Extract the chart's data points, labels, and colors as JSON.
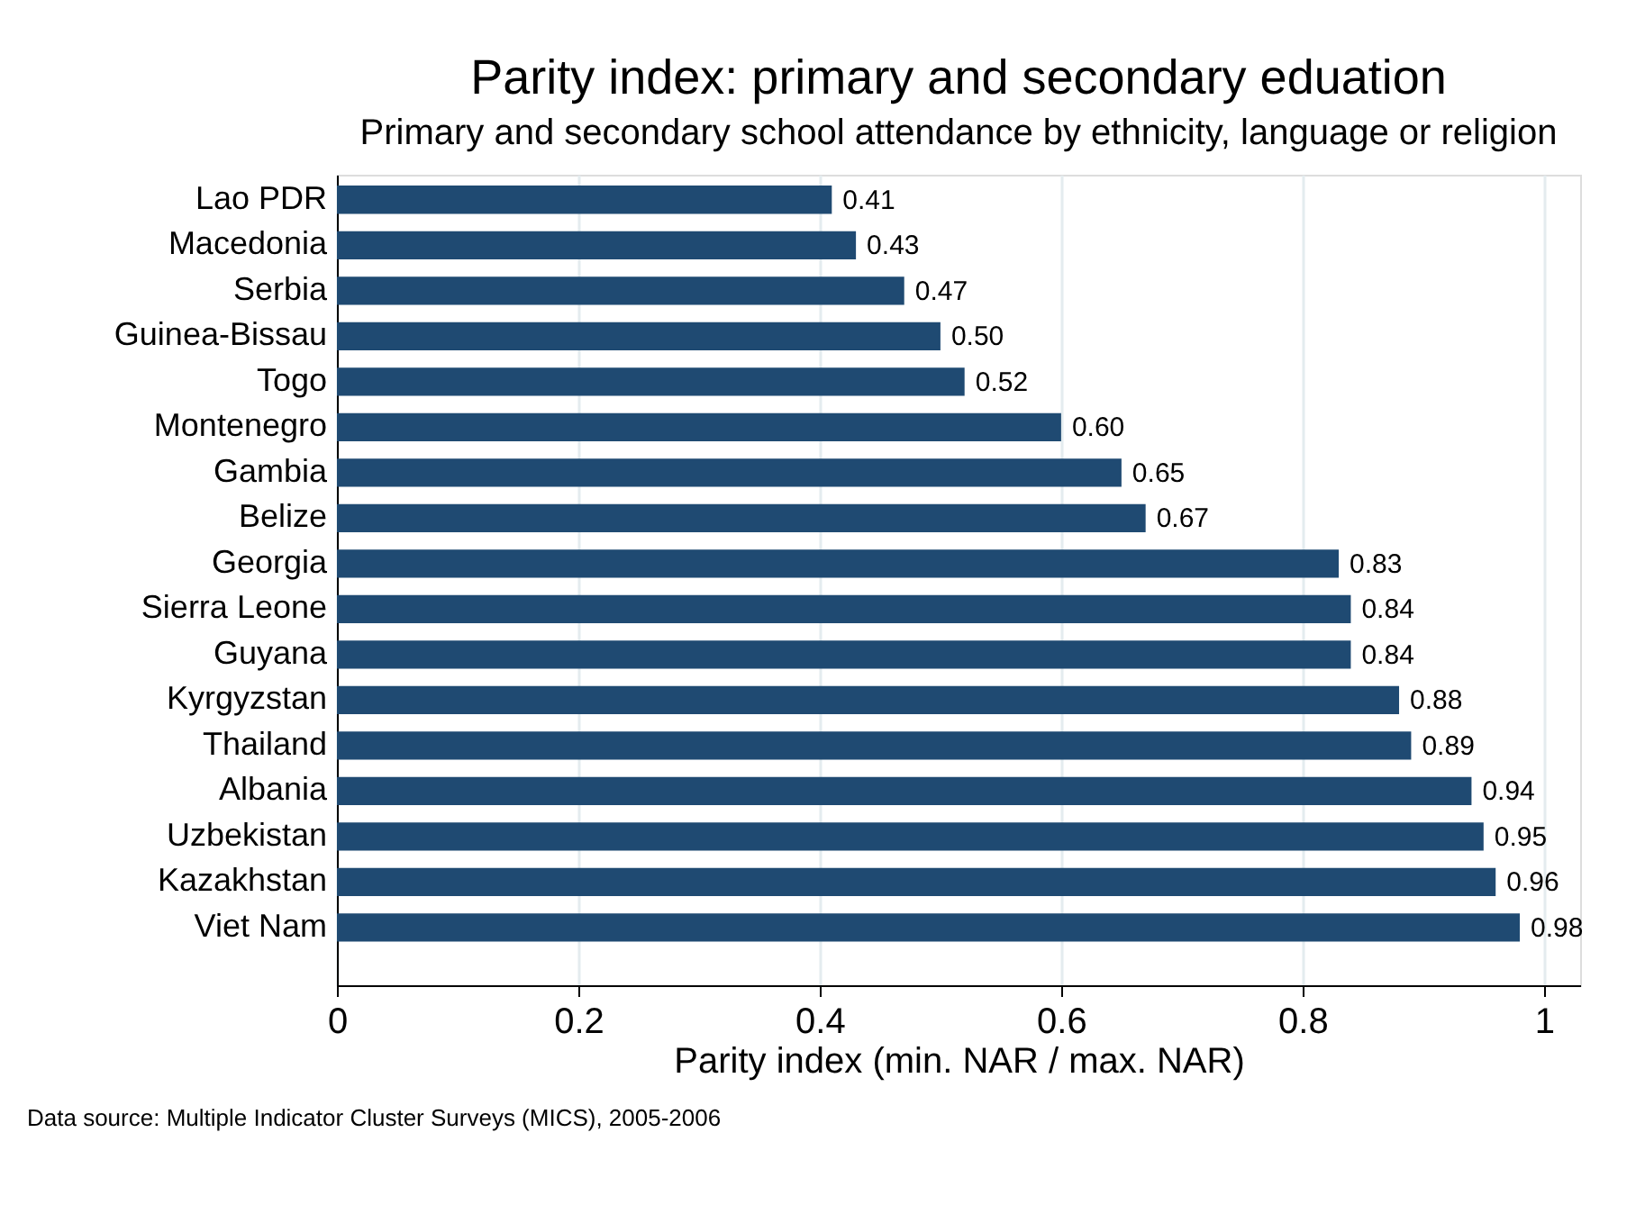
{
  "chart_data": {
    "type": "bar",
    "orientation": "horizontal",
    "title": "Parity index: primary and secondary eduation",
    "subtitle": "Primary and secondary school attendance by ethnicity, language or religion",
    "xlabel": "Parity index (min. NAR / max. NAR)",
    "categories": [
      "Lao PDR",
      "Macedonia",
      "Serbia",
      "Guinea-Bissau",
      "Togo",
      "Montenegro",
      "Gambia",
      "Belize",
      "Georgia",
      "Sierra Leone",
      "Guyana",
      "Kyrgyzstan",
      "Thailand",
      "Albania",
      "Uzbekistan",
      "Kazakhstan",
      "Viet Nam"
    ],
    "values": [
      0.41,
      0.43,
      0.47,
      0.5,
      0.52,
      0.6,
      0.65,
      0.67,
      0.83,
      0.84,
      0.84,
      0.88,
      0.89,
      0.94,
      0.95,
      0.96,
      0.98
    ],
    "value_labels": [
      "0.41",
      "0.43",
      "0.47",
      "0.50",
      "0.52",
      "0.60",
      "0.65",
      "0.67",
      "0.83",
      "0.84",
      "0.84",
      "0.88",
      "0.89",
      "0.94",
      "0.95",
      "0.96",
      "0.98"
    ],
    "color": "#1f4a72",
    "xlim": [
      0,
      1.03
    ],
    "xticks": [
      0,
      0.2,
      0.4,
      0.6,
      0.8,
      1
    ],
    "grid": "x",
    "annotations": [
      "Data source: Multiple Indicator Cluster Surveys (MICS), 2005-2006"
    ]
  }
}
